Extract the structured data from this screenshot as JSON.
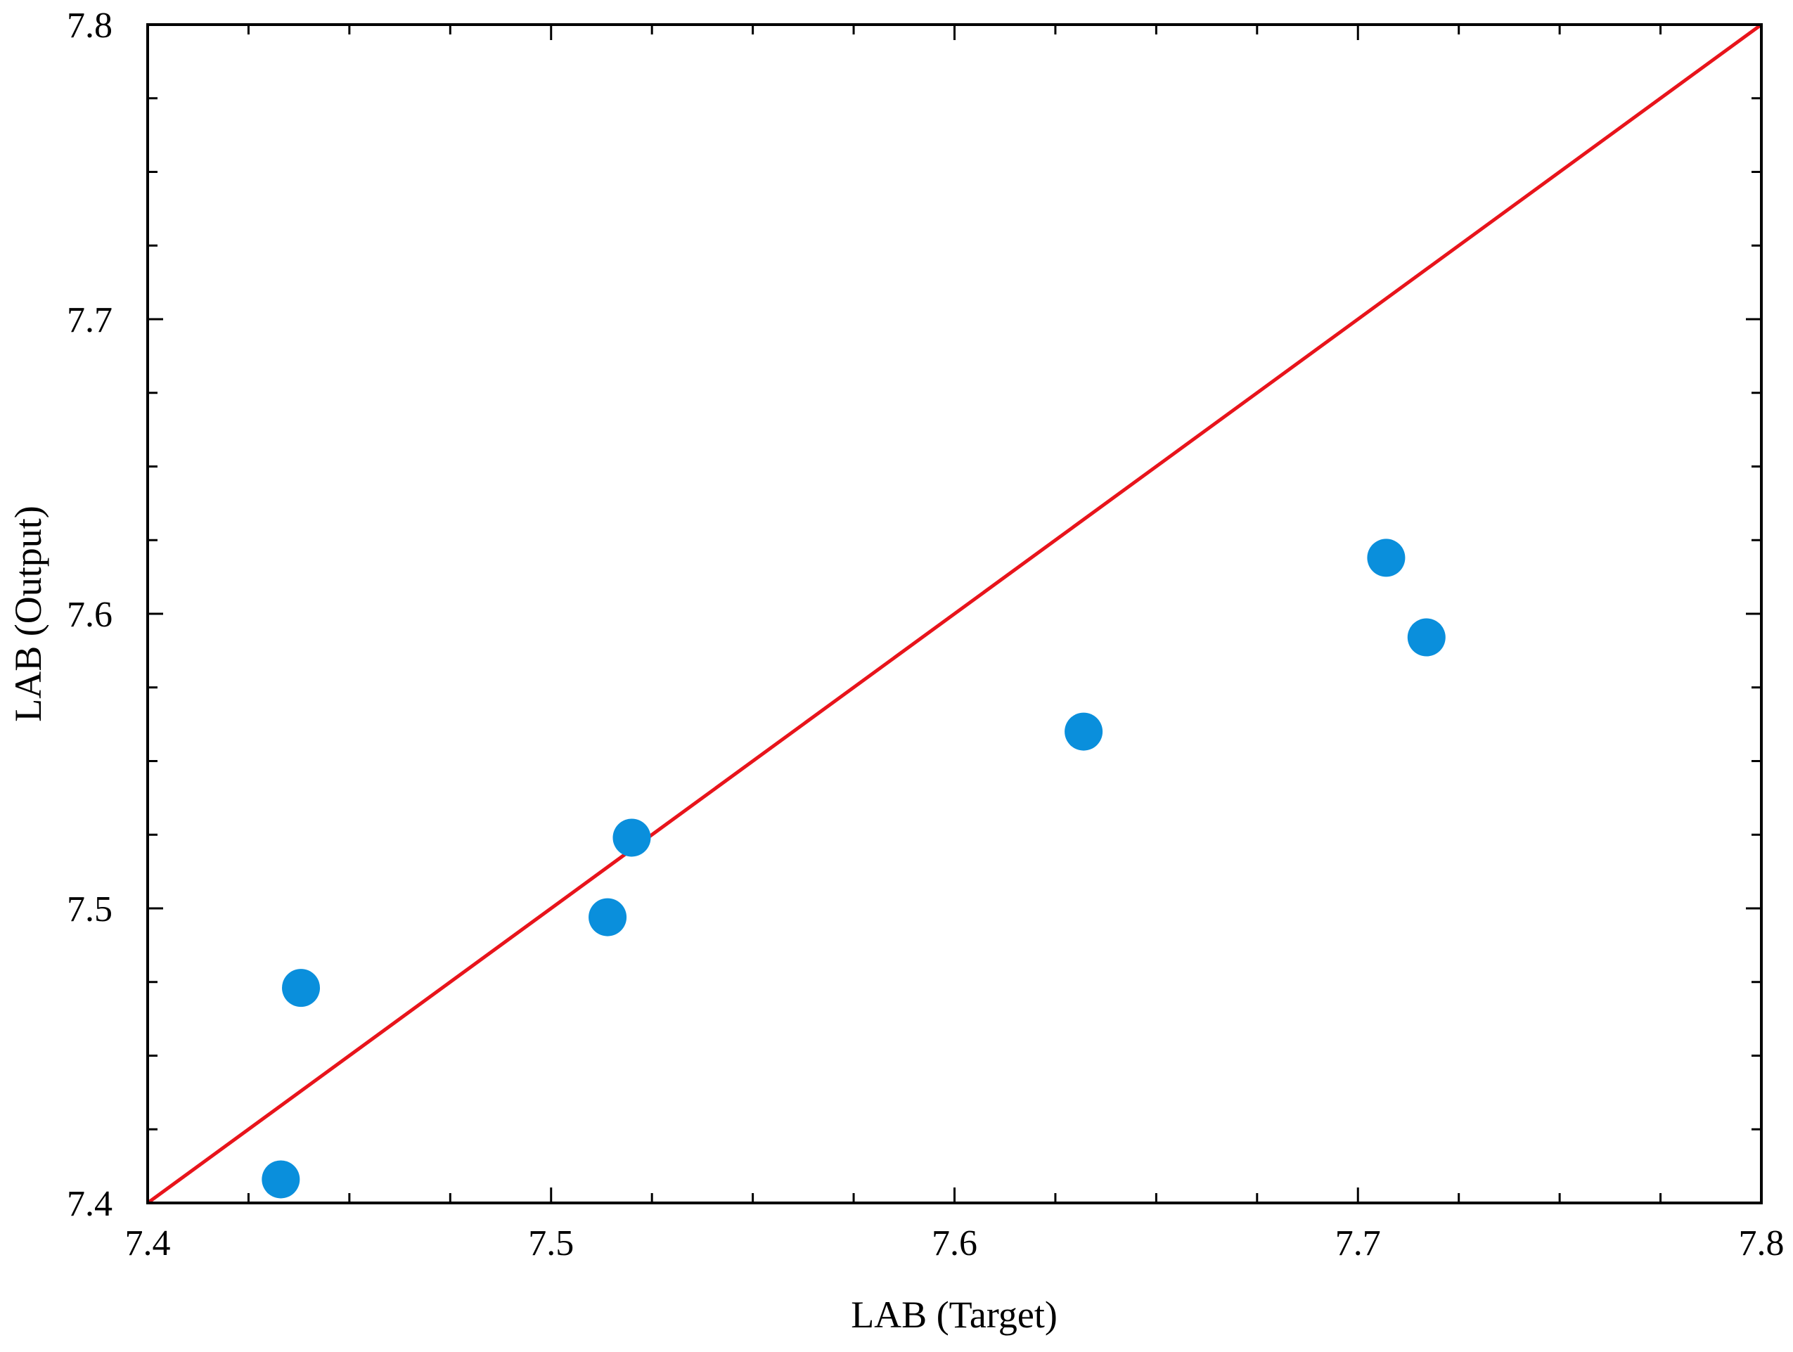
{
  "chart_data": {
    "type": "scatter",
    "title": "",
    "xlabel": "LAB (Target)",
    "ylabel": "LAB (Output)",
    "xlim": [
      7.4,
      7.8
    ],
    "ylim": [
      7.4,
      7.8
    ],
    "x_ticks": [
      "7.4",
      "7.5",
      "7.6",
      "7.7",
      "7.8"
    ],
    "y_ticks": [
      "7.4",
      "7.5",
      "7.6",
      "7.7",
      "7.8"
    ],
    "grid": false,
    "reference_line": {
      "from": [
        7.4,
        7.4
      ],
      "to": [
        7.8,
        7.8
      ],
      "color": "#e8141b"
    },
    "series": [
      {
        "color": "#0a8fdc",
        "points": [
          {
            "x": 7.433,
            "y": 7.408
          },
          {
            "x": 7.438,
            "y": 7.473
          },
          {
            "x": 7.514,
            "y": 7.497
          },
          {
            "x": 7.52,
            "y": 7.524
          },
          {
            "x": 7.632,
            "y": 7.56
          },
          {
            "x": 7.707,
            "y": 7.619
          },
          {
            "x": 7.717,
            "y": 7.592
          }
        ]
      }
    ]
  }
}
